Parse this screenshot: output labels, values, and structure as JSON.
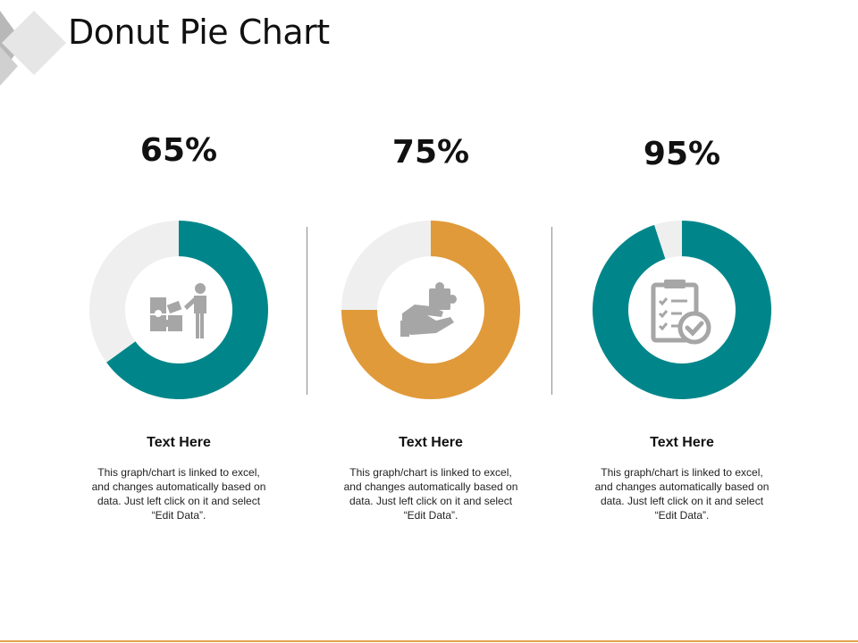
{
  "header": {
    "title": "Donut Pie Chart"
  },
  "chart_data": [
    {
      "type": "pie",
      "variant": "donut",
      "values": [
        65,
        35
      ],
      "value_label": "65%",
      "colors": [
        "#00868a",
        "#efefef"
      ],
      "icon": "business-puzzle-person-icon",
      "heading": "Text Here",
      "description": "This graph/chart is linked to excel, and changes automatically based on data. Just left click on it and select “Edit Data”."
    },
    {
      "type": "pie",
      "variant": "donut",
      "values": [
        75,
        25
      ],
      "value_label": "75%",
      "colors": [
        "#e09a3a",
        "#efefef"
      ],
      "icon": "hand-puzzle-icon",
      "heading": "Text Here",
      "description": "This graph/chart is linked to excel, and changes automatically based on data. Just left click on it and select “Edit Data”."
    },
    {
      "type": "pie",
      "variant": "donut",
      "values": [
        95,
        5
      ],
      "value_label": "95%",
      "colors": [
        "#00868a",
        "#efefef"
      ],
      "icon": "clipboard-checklist-icon",
      "heading": "Text Here",
      "description": "This graph/chart is linked to excel, and changes automatically based on data. Just left click on it and select “Edit Data”."
    }
  ],
  "theme": {
    "accent_line": "#e3a24a",
    "icon_color": "#a6a6a6"
  }
}
